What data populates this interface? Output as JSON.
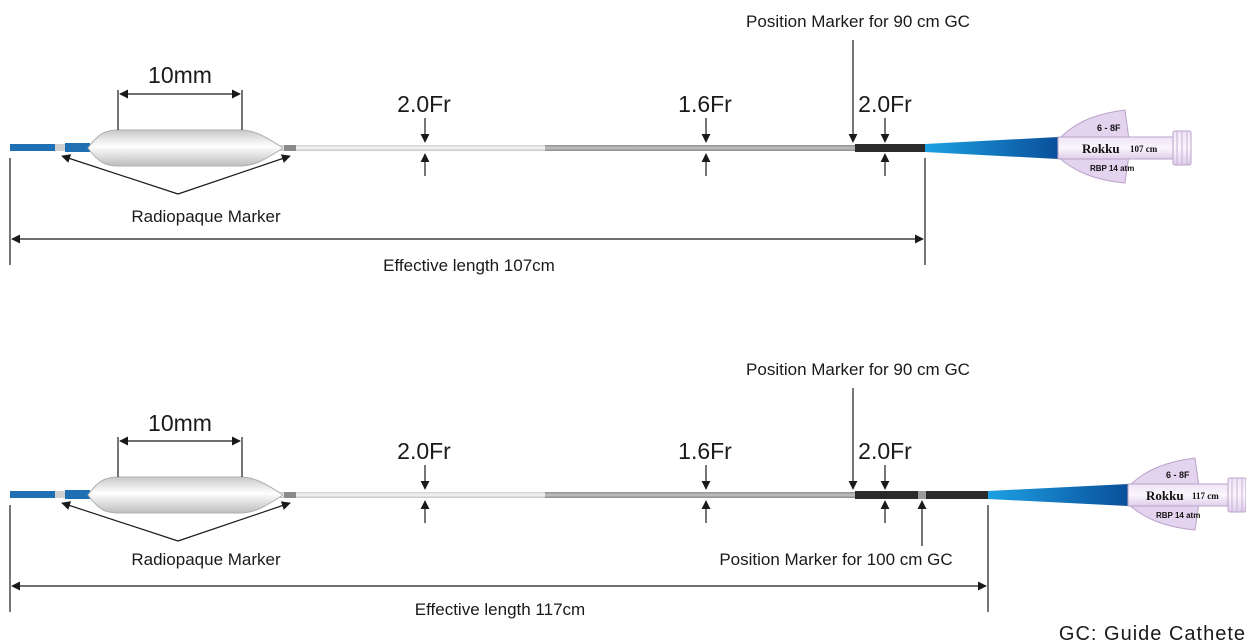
{
  "footnote": "GC: Guide Cathete",
  "colors": {
    "tip_blue": "#1f6fb5",
    "proximal_blue": "#1e6fc0",
    "shaft_light": "#e3e3e3",
    "shaft_mid": "#a9a9a9",
    "shaft_dark": "#2b2b2b",
    "hub_purple": "#e4d3ee"
  },
  "catheters": [
    {
      "balloon_length_label": "10mm",
      "radiopaque_label": "Radiopaque Marker",
      "diameter_labels": [
        "2.0Fr",
        "1.6Fr",
        "2.0Fr"
      ],
      "position_marker_90_label": "Position Marker for 90 cm GC",
      "position_marker_100_label": "",
      "effective_length_label": "Effective length  107cm",
      "hub": {
        "size": "6 - 8F",
        "brand": "Rokku",
        "length": "107 cm",
        "rbp": "RBP 14 atm"
      }
    },
    {
      "balloon_length_label": "10mm",
      "radiopaque_label": "Radiopaque Marker",
      "diameter_labels": [
        "2.0Fr",
        "1.6Fr",
        "2.0Fr"
      ],
      "position_marker_90_label": "Position Marker for 90 cm GC",
      "position_marker_100_label": "Position Marker for 100 cm GC",
      "effective_length_label": "Effective length  117cm",
      "hub": {
        "size": "6 - 8F",
        "brand": "Rokku",
        "length": "117 cm",
        "rbp": "RBP 14 atm"
      }
    }
  ]
}
